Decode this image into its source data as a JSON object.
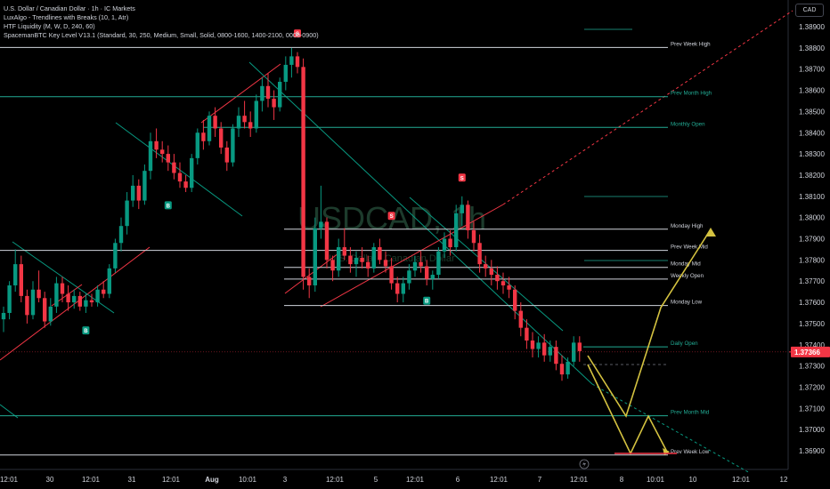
{
  "legend": {
    "title": "U.S. Dollar / Canadian Dollar · 1h · IC Markets",
    "indicators": [
      "LuxAlgo - Trendlines with Breaks (10, 1, Atr)",
      "HTF Liquidity (M, W, D, 240, 60)",
      "SpacemanBTC Key Level V13.1 (Standard, 30, 250, Medium, Small, Solid, 0800-1600, 1400-2100, 0000-0900)"
    ]
  },
  "currency": "CAD",
  "watermark": {
    "symbol": "USDCAD, 1h",
    "name": "U.S. Dollar / Canadian Dollar"
  },
  "colors": {
    "up": "#089981",
    "down": "#f23645",
    "level_white": "#d1d4dc",
    "level_green": "#22ab94",
    "projection": "#d4c240",
    "price_tag": "#f23645",
    "tl_red": "#f23645",
    "tl_green": "#089981"
  },
  "chart_data": {
    "type": "candlestick",
    "title": "U.S. Dollar / Canadian Dollar · 1h · IC Markets",
    "ylim": [
      1.3684,
      1.3899
    ],
    "price_ticks": [
      "1.38900",
      "1.38800",
      "1.38700",
      "1.38600",
      "1.38500",
      "1.38400",
      "1.38300",
      "1.38200",
      "1.38100",
      "1.38000",
      "1.37900",
      "1.37800",
      "1.37700",
      "1.37600",
      "1.37500",
      "1.37400",
      "1.37300",
      "1.37200",
      "1.37100",
      "1.37000",
      "1.36900"
    ],
    "time_ticks": [
      "12:01",
      "30",
      "12:01",
      "31",
      "12:01",
      "Aug",
      "10:01",
      "3",
      "12:01",
      "5",
      "12:01",
      "6",
      "12:01",
      "7",
      "12:01",
      "8",
      "10:01",
      "10",
      "12:01",
      "12"
    ],
    "last_price": "1.37366",
    "candles": [
      [
        1.3752,
        1.3758,
        1.3746,
        1.3755
      ],
      [
        1.3755,
        1.377,
        1.3752,
        1.3768
      ],
      [
        1.3768,
        1.3785,
        1.3765,
        1.3778
      ],
      [
        1.3778,
        1.3782,
        1.376,
        1.3763
      ],
      [
        1.3763,
        1.3766,
        1.375,
        1.3754
      ],
      [
        1.3754,
        1.377,
        1.3752,
        1.3766
      ],
      [
        1.3766,
        1.3775,
        1.376,
        1.3762
      ],
      [
        1.3762,
        1.3765,
        1.3748,
        1.3751
      ],
      [
        1.3751,
        1.3762,
        1.3749,
        1.3758
      ],
      [
        1.3758,
        1.3772,
        1.3755,
        1.3769
      ],
      [
        1.3769,
        1.3772,
        1.376,
        1.3764
      ],
      [
        1.3764,
        1.3768,
        1.3756,
        1.376
      ],
      [
        1.376,
        1.3766,
        1.3757,
        1.3763
      ],
      [
        1.3763,
        1.3765,
        1.3756,
        1.3758
      ],
      [
        1.3758,
        1.3764,
        1.3755,
        1.3761
      ],
      [
        1.3761,
        1.3764,
        1.3758,
        1.376
      ],
      [
        1.376,
        1.3768,
        1.3758,
        1.3766
      ],
      [
        1.3766,
        1.377,
        1.3762,
        1.3764
      ],
      [
        1.3764,
        1.3778,
        1.3762,
        1.3776
      ],
      [
        1.3776,
        1.379,
        1.3774,
        1.3788
      ],
      [
        1.3788,
        1.38,
        1.3784,
        1.3796
      ],
      [
        1.3796,
        1.3812,
        1.3792,
        1.3808
      ],
      [
        1.3808,
        1.382,
        1.3805,
        1.3815
      ],
      [
        1.3815,
        1.3818,
        1.3804,
        1.3808
      ],
      [
        1.3808,
        1.3825,
        1.3806,
        1.3822
      ],
      [
        1.3822,
        1.384,
        1.3818,
        1.3836
      ],
      [
        1.3836,
        1.3842,
        1.3828,
        1.3832
      ],
      [
        1.3832,
        1.3836,
        1.3826,
        1.383
      ],
      [
        1.383,
        1.3834,
        1.3822,
        1.3826
      ],
      [
        1.3826,
        1.383,
        1.3818,
        1.3821
      ],
      [
        1.3821,
        1.3826,
        1.3814,
        1.3817
      ],
      [
        1.3817,
        1.382,
        1.3812,
        1.3814
      ],
      [
        1.3814,
        1.383,
        1.3812,
        1.3828
      ],
      [
        1.3828,
        1.3842,
        1.3825,
        1.384
      ],
      [
        1.384,
        1.3846,
        1.3832,
        1.3836
      ],
      [
        1.3836,
        1.385,
        1.3834,
        1.3848
      ],
      [
        1.3848,
        1.3852,
        1.3838,
        1.3842
      ],
      [
        1.3842,
        1.3845,
        1.383,
        1.3833
      ],
      [
        1.3833,
        1.3836,
        1.3822,
        1.3826
      ],
      [
        1.3826,
        1.3844,
        1.3824,
        1.3842
      ],
      [
        1.3842,
        1.3852,
        1.3838,
        1.3848
      ],
      [
        1.3848,
        1.3855,
        1.3842,
        1.3845
      ],
      [
        1.3845,
        1.385,
        1.3838,
        1.3842
      ],
      [
        1.3842,
        1.3858,
        1.384,
        1.3855
      ],
      [
        1.3855,
        1.3866,
        1.385,
        1.3862
      ],
      [
        1.3862,
        1.3868,
        1.3852,
        1.3856
      ],
      [
        1.3856,
        1.386,
        1.3846,
        1.3852
      ],
      [
        1.3852,
        1.3866,
        1.385,
        1.3864
      ],
      [
        1.3864,
        1.3876,
        1.386,
        1.3872
      ],
      [
        1.3872,
        1.388,
        1.3866,
        1.3876
      ],
      [
        1.3876,
        1.3878,
        1.3868,
        1.3871
      ],
      [
        1.3871,
        1.3875,
        1.3766,
        1.3772
      ],
      [
        1.3772,
        1.3776,
        1.3762,
        1.3768
      ],
      [
        1.3768,
        1.38,
        1.3765,
        1.3795
      ],
      [
        1.3795,
        1.3815,
        1.379,
        1.3798
      ],
      [
        1.3798,
        1.38,
        1.3776,
        1.378
      ],
      [
        1.378,
        1.3782,
        1.377,
        1.3775
      ],
      [
        1.3775,
        1.379,
        1.3772,
        1.3786
      ],
      [
        1.3786,
        1.3795,
        1.378,
        1.3782
      ],
      [
        1.3782,
        1.3786,
        1.3774,
        1.3778
      ],
      [
        1.3778,
        1.3784,
        1.3772,
        1.3781
      ],
      [
        1.3781,
        1.3786,
        1.3776,
        1.3779
      ],
      [
        1.3779,
        1.3782,
        1.3772,
        1.3776
      ],
      [
        1.3776,
        1.3788,
        1.3774,
        1.3786
      ],
      [
        1.3786,
        1.379,
        1.3778,
        1.378
      ],
      [
        1.378,
        1.3784,
        1.3774,
        1.3777
      ],
      [
        1.3777,
        1.3781,
        1.3766,
        1.3769
      ],
      [
        1.3769,
        1.3772,
        1.376,
        1.3764
      ],
      [
        1.3764,
        1.3772,
        1.376,
        1.3769
      ],
      [
        1.3769,
        1.3778,
        1.3766,
        1.3775
      ],
      [
        1.3775,
        1.3782,
        1.3772,
        1.3779
      ],
      [
        1.3779,
        1.3784,
        1.3774,
        1.3777
      ],
      [
        1.3777,
        1.378,
        1.3768,
        1.3771
      ],
      [
        1.3771,
        1.3775,
        1.3766,
        1.3773
      ],
      [
        1.3773,
        1.3786,
        1.3771,
        1.3784
      ],
      [
        1.3784,
        1.3793,
        1.3781,
        1.379
      ],
      [
        1.379,
        1.3794,
        1.3782,
        1.3786
      ],
      [
        1.3786,
        1.3806,
        1.3784,
        1.3802
      ],
      [
        1.3802,
        1.381,
        1.3796,
        1.3806
      ],
      [
        1.3806,
        1.3808,
        1.379,
        1.3794
      ],
      [
        1.3794,
        1.3798,
        1.3784,
        1.3788
      ],
      [
        1.3788,
        1.3792,
        1.3774,
        1.3778
      ],
      [
        1.3778,
        1.3782,
        1.3772,
        1.3776
      ],
      [
        1.3776,
        1.378,
        1.3768,
        1.3773
      ],
      [
        1.3773,
        1.3777,
        1.3766,
        1.377
      ],
      [
        1.377,
        1.3774,
        1.3764,
        1.3768
      ],
      [
        1.3768,
        1.3772,
        1.3762,
        1.3766
      ],
      [
        1.3766,
        1.3768,
        1.3752,
        1.3756
      ],
      [
        1.3756,
        1.376,
        1.3744,
        1.3748
      ],
      [
        1.3748,
        1.3752,
        1.3738,
        1.3742
      ],
      [
        1.3742,
        1.3746,
        1.3734,
        1.3738
      ],
      [
        1.3738,
        1.3744,
        1.3734,
        1.3741
      ],
      [
        1.3741,
        1.3745,
        1.3732,
        1.3735
      ],
      [
        1.3735,
        1.3742,
        1.3732,
        1.3739
      ],
      [
        1.3739,
        1.3742,
        1.3728,
        1.3731
      ],
      [
        1.3731,
        1.3735,
        1.3723,
        1.3726
      ],
      [
        1.3726,
        1.3734,
        1.3724,
        1.3732
      ],
      [
        1.3732,
        1.3744,
        1.373,
        1.3741
      ],
      [
        1.3741,
        1.3744,
        1.3732,
        1.3737
      ]
    ],
    "key_levels": [
      {
        "label": "Prev Week High",
        "price": 1.38802,
        "x0": 0,
        "color": "white"
      },
      {
        "label": "Prev Month High",
        "price": 1.3857,
        "x0": 0,
        "color": "green"
      },
      {
        "label": "Monthly Open",
        "price": 1.38425,
        "x0": 228,
        "color": "green"
      },
      {
        "label": "Monday High",
        "price": 1.37945,
        "x0": 319,
        "color": "white"
      },
      {
        "label": "Prev Week Mid",
        "price": 1.37845,
        "x0": 0,
        "color": "white"
      },
      {
        "label": "Monday Mid",
        "price": 1.37765,
        "x0": 319,
        "color": "white"
      },
      {
        "label": "Weekly Open",
        "price": 1.3771,
        "x0": 319,
        "color": "white"
      },
      {
        "label": "Monday Low",
        "price": 1.37585,
        "x0": 319,
        "color": "white"
      },
      {
        "label": "Daily Open",
        "price": 1.3739,
        "x0": 655,
        "color": "green"
      },
      {
        "label": "Prev Month Mid",
        "price": 1.37065,
        "x0": 0,
        "color": "green"
      },
      {
        "label": "Prev Week Low",
        "price": 1.3688,
        "x0": 0,
        "color": "white"
      }
    ],
    "signals": [
      {
        "type": "B",
        "candle": 14,
        "price": 1.3752
      },
      {
        "type": "B",
        "candle": 28,
        "price": 1.3811
      },
      {
        "type": "S",
        "candle": 50,
        "price": 1.3882
      },
      {
        "type": "S",
        "candle": 66,
        "price": 1.3796
      },
      {
        "type": "B",
        "candle": 72,
        "price": 1.3766
      },
      {
        "type": "S",
        "candle": 78,
        "price": 1.3814
      }
    ],
    "projection": [
      [
        660,
        400
      ],
      [
        703,
        468
      ],
      [
        742,
        346
      ],
      [
        798,
        258
      ]
    ],
    "projection2": [
      [
        660,
        410
      ],
      [
        708,
        510
      ],
      [
        728,
        468
      ],
      [
        750,
        510
      ]
    ]
  }
}
